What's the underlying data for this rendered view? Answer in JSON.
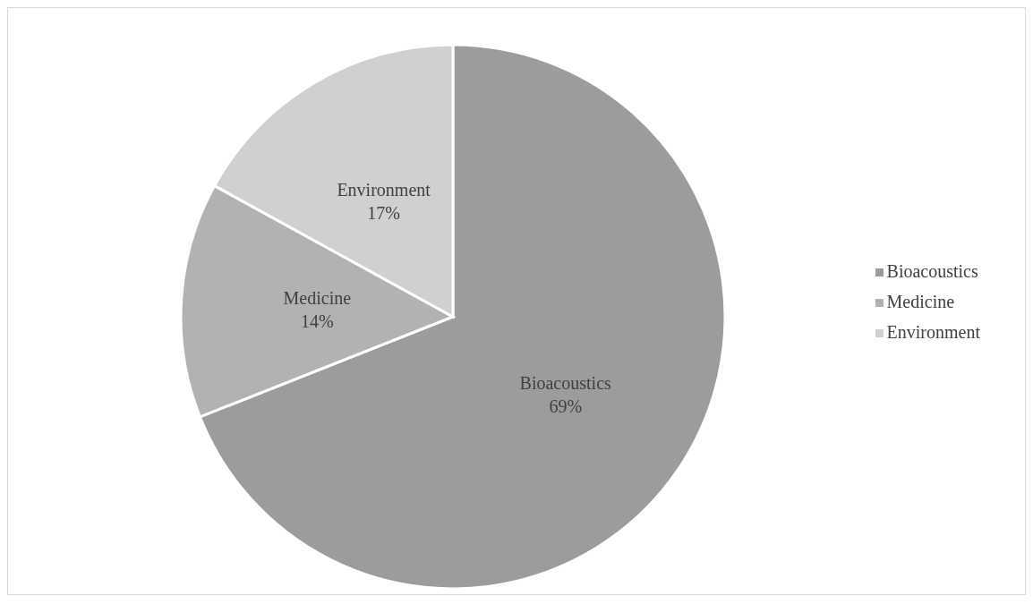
{
  "chart_data": {
    "type": "pie",
    "categories": [
      "Bioacoustics",
      "Medicine",
      "Environment"
    ],
    "values": [
      69,
      14,
      17
    ],
    "value_labels": [
      "69%",
      "14%",
      "17%"
    ],
    "colors": [
      "#9c9c9c",
      "#b2b2b2",
      "#d0d0d0"
    ],
    "legend": "right"
  }
}
